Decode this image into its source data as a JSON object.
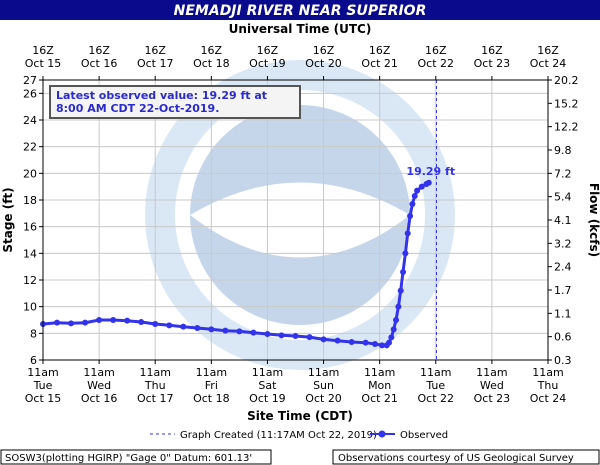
{
  "chart_data": {
    "type": "line",
    "title": "NEMADJI RIVER NEAR SUPERIOR",
    "top_axis_label": "Universal Time (UTC)",
    "xlabel": "Site Time (CDT)",
    "ylabel": "Stage (ft)",
    "y2label": "Flow (kcfs)",
    "annotation": "Latest observed value: 19.29 ft at 8:00 AM CDT 22-Oct-2019.",
    "point_label": "19.29 ft",
    "xlim": [
      0,
      216
    ],
    "xticks": [
      {
        "value": 0,
        "label": "11am\nTue\nOct 15"
      },
      {
        "value": 24,
        "label": "11am\nWed\nOct 16"
      },
      {
        "value": 48,
        "label": "11am\nThu\nOct 17"
      },
      {
        "value": 72,
        "label": "11am\nFri\nOct 18"
      },
      {
        "value": 96,
        "label": "11am\nSat\nOct 19"
      },
      {
        "value": 120,
        "label": "11am\nSun\nOct 20"
      },
      {
        "value": 144,
        "label": "11am\nMon\nOct 21"
      },
      {
        "value": 168,
        "label": "11am\nTue\nOct 22"
      },
      {
        "value": 192,
        "label": "11am\nWed\nOct 23"
      },
      {
        "value": 216,
        "label": "11am\nThu\nOct 24"
      }
    ],
    "x2ticks": [
      {
        "value": 0,
        "label": "16Z\nOct 15"
      },
      {
        "value": 24,
        "label": "16Z\nOct 16"
      },
      {
        "value": 48,
        "label": "16Z\nOct 17"
      },
      {
        "value": 72,
        "label": "16Z\nOct 18"
      },
      {
        "value": 96,
        "label": "16Z\nOct 19"
      },
      {
        "value": 120,
        "label": "16Z\nOct 20"
      },
      {
        "value": 144,
        "label": "16Z\nOct 21"
      },
      {
        "value": 168,
        "label": "16Z\nOct 22"
      },
      {
        "value": 192,
        "label": "16Z\nOct 23"
      },
      {
        "value": 216,
        "label": "16Z\nOct 24"
      }
    ],
    "ylim": [
      6,
      27
    ],
    "yticks": [
      6,
      8,
      10,
      12,
      14,
      16,
      18,
      20,
      22,
      24,
      26,
      27
    ],
    "y2ticks": [
      0.3,
      0.6,
      1.1,
      1.7,
      2.4,
      3.2,
      4.1,
      5.4,
      7.2,
      9.8,
      12.2,
      15.2,
      20.2
    ],
    "grid": true,
    "graph_created": {
      "label": "Graph Created (11:17AM Oct 22, 2019)",
      "x": 168.3
    },
    "series": [
      {
        "name": "Observed",
        "color": "#3333ee",
        "x": [
          0,
          6,
          12,
          18,
          24,
          30,
          36,
          42,
          48,
          54,
          60,
          66,
          72,
          78,
          84,
          90,
          96,
          102,
          108,
          114,
          120,
          126,
          132,
          138,
          142,
          145,
          147,
          148,
          149,
          150,
          151,
          152,
          153,
          154,
          155,
          156,
          157,
          158,
          159,
          160,
          162,
          164,
          165
        ],
        "values": [
          8.7,
          8.8,
          8.75,
          8.8,
          9.0,
          9.0,
          8.95,
          8.85,
          8.7,
          8.6,
          8.5,
          8.4,
          8.3,
          8.2,
          8.15,
          8.05,
          7.95,
          7.85,
          7.8,
          7.72,
          7.55,
          7.45,
          7.35,
          7.3,
          7.2,
          7.1,
          7.1,
          7.3,
          7.7,
          8.3,
          9.0,
          10.0,
          11.2,
          12.6,
          14.0,
          15.5,
          16.8,
          17.7,
          18.3,
          18.7,
          19.0,
          19.2,
          19.29
        ]
      }
    ],
    "footer_left": "SOSW3(plotting HGIRP) \"Gage 0\" Datum: 601.13'",
    "footer_right": "Observations courtesy of US Geological Survey"
  }
}
